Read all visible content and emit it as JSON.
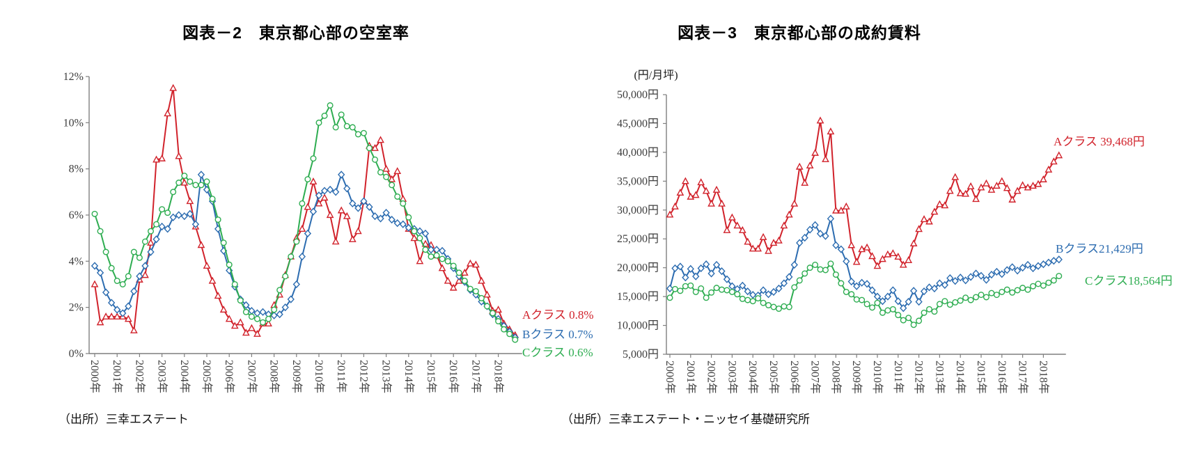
{
  "page": {
    "background": "#ffffff"
  },
  "chart_data": [
    {
      "id": "vacancy",
      "type": "line",
      "title": "図表－2　東京都心部の空室率",
      "source": "（出所）三幸エステート",
      "frequency": "quarterly",
      "x_start": "2000Q1",
      "x_end": "2018Q4",
      "ylim": [
        0,
        12
      ],
      "grid": false,
      "legend_position": "right-of-line-end",
      "y_ticks": [
        "0%",
        "2%",
        "4%",
        "6%",
        "8%",
        "10%",
        "12%"
      ],
      "x_labels": [
        "2000年",
        "2001年",
        "2002年",
        "2003年",
        "2004年",
        "2005年",
        "2006年",
        "2007年",
        "2008年",
        "2009年",
        "2010年",
        "2011年",
        "2012年",
        "2013年",
        "2014年",
        "2015年",
        "2016年",
        "2017年",
        "2018年"
      ],
      "series": [
        {
          "name": "a-class",
          "label": "Aクラス 0.8%",
          "color": "#d1222b",
          "marker": "triangle",
          "end_value": 0.8,
          "values": [
            3.0,
            1.35,
            1.6,
            1.6,
            1.6,
            1.6,
            1.5,
            1.0,
            3.2,
            3.4,
            4.8,
            8.4,
            8.45,
            10.4,
            11.5,
            8.55,
            7.4,
            6.6,
            5.5,
            4.7,
            3.8,
            3.15,
            2.5,
            1.9,
            1.5,
            1.2,
            1.35,
            0.9,
            1.1,
            0.85,
            1.3,
            1.3,
            2.1,
            2.55,
            3.4,
            4.2,
            5.0,
            5.4,
            6.35,
            7.45,
            6.5,
            6.75,
            6.0,
            4.85,
            6.2,
            5.95,
            4.95,
            5.3,
            6.6,
            9.0,
            8.9,
            9.25,
            8.0,
            7.55,
            7.9,
            6.7,
            5.4,
            5.0,
            4.0,
            4.75,
            4.7,
            4.25,
            3.7,
            3.15,
            2.85,
            3.15,
            3.5,
            3.9,
            3.85,
            3.15,
            2.55,
            1.85,
            1.9,
            1.3,
            1.05,
            0.8
          ]
        },
        {
          "name": "b-class",
          "label": "Bクラス 0.7%",
          "color": "#2c6cb0",
          "marker": "diamond",
          "end_value": 0.7,
          "values": [
            3.8,
            3.5,
            2.65,
            2.2,
            1.9,
            1.75,
            2.05,
            2.7,
            3.35,
            3.8,
            4.4,
            4.95,
            5.5,
            5.4,
            5.9,
            6.0,
            5.95,
            6.05,
            5.6,
            7.75,
            7.1,
            6.6,
            5.4,
            4.45,
            3.6,
            2.9,
            2.35,
            2.1,
            1.85,
            1.75,
            1.8,
            1.7,
            1.65,
            1.7,
            2.0,
            2.35,
            3.0,
            4.2,
            5.2,
            6.15,
            6.85,
            7.05,
            7.1,
            7.0,
            7.75,
            7.15,
            6.5,
            6.3,
            6.6,
            6.35,
            5.95,
            5.85,
            6.1,
            5.8,
            5.65,
            5.6,
            5.45,
            5.4,
            5.3,
            5.2,
            4.5,
            4.5,
            4.45,
            4.1,
            3.7,
            3.35,
            3.1,
            2.75,
            2.55,
            2.25,
            2.05,
            1.7,
            1.5,
            1.2,
            0.95,
            0.7
          ]
        },
        {
          "name": "c-class",
          "label": "Cクラス 0.6%",
          "color": "#2ead51",
          "marker": "circle",
          "end_value": 0.6,
          "values": [
            6.05,
            5.3,
            4.4,
            3.7,
            3.15,
            3.0,
            3.35,
            4.4,
            4.15,
            4.85,
            5.3,
            5.6,
            6.25,
            6.1,
            7.0,
            7.4,
            7.7,
            7.45,
            7.3,
            7.3,
            7.45,
            6.7,
            5.8,
            4.8,
            3.85,
            3.0,
            2.3,
            1.8,
            1.6,
            1.5,
            1.35,
            1.5,
            1.9,
            2.75,
            3.35,
            4.2,
            4.85,
            6.5,
            7.55,
            8.45,
            10.0,
            10.3,
            10.75,
            9.8,
            10.35,
            9.85,
            9.8,
            9.5,
            9.55,
            8.9,
            8.4,
            7.85,
            7.65,
            7.3,
            6.8,
            6.5,
            5.9,
            5.3,
            5.0,
            4.5,
            4.2,
            4.25,
            4.1,
            4.0,
            3.8,
            3.5,
            3.15,
            2.8,
            2.7,
            2.4,
            2.05,
            1.75,
            1.4,
            1.05,
            0.85,
            0.6
          ]
        }
      ]
    },
    {
      "id": "rent",
      "type": "line",
      "title": "図表－3　東京都心部の成約賃料",
      "unit_label": "(円/月坪)",
      "source": "（出所）三幸エステート・ニッセイ基礎研究所",
      "frequency": "quarterly",
      "x_start": "2000Q1",
      "x_end": "2018Q4",
      "ylim": [
        5000,
        50000
      ],
      "grid": false,
      "legend_position": "right-of-line-end",
      "y_ticks": [
        "5,000円",
        "10,000円",
        "15,000円",
        "20,000円",
        "25,000円",
        "30,000円",
        "35,000円",
        "40,000円",
        "45,000円",
        "50,000円"
      ],
      "x_labels": [
        "2000年",
        "2001年",
        "2002年",
        "2003年",
        "2004年",
        "2005年",
        "2006年",
        "2007年",
        "2008年",
        "2009年",
        "2010年",
        "2011年",
        "2012年",
        "2013年",
        "2014年",
        "2015年",
        "2016年",
        "2017年",
        "2018年"
      ],
      "series": [
        {
          "name": "a-class",
          "label": "Aクラス 39,468円",
          "color": "#d1222b",
          "marker": "triangle",
          "end_value": 39468,
          "values": [
            29200,
            30600,
            33000,
            35000,
            32300,
            32600,
            34800,
            33300,
            31100,
            33500,
            31100,
            26500,
            28700,
            27300,
            26500,
            24500,
            23300,
            23300,
            25300,
            22900,
            24300,
            24700,
            27300,
            29200,
            31100,
            37500,
            34700,
            37700,
            39900,
            45500,
            38800,
            43600,
            29900,
            29900,
            30600,
            23900,
            21000,
            23200,
            23500,
            22000,
            20300,
            21500,
            22300,
            22500,
            21900,
            20500,
            21300,
            24200,
            26700,
            28400,
            28000,
            29700,
            31000,
            30800,
            33300,
            35700,
            32900,
            32800,
            34100,
            31900,
            33900,
            34600,
            33500,
            34200,
            35000,
            33800,
            31800,
            33300,
            34300,
            33900,
            34200,
            34500,
            35300,
            37000,
            38400,
            39468
          ]
        },
        {
          "name": "b-class",
          "label": "Bクラス21,429円",
          "color": "#2c6cb0",
          "marker": "diamond",
          "end_value": 21429,
          "values": [
            16400,
            19900,
            20200,
            18300,
            19800,
            18500,
            19900,
            20600,
            19000,
            20500,
            19400,
            18000,
            16800,
            16300,
            16900,
            15900,
            15300,
            15200,
            16100,
            15400,
            15800,
            16400,
            17300,
            18400,
            20500,
            24300,
            25200,
            26600,
            27400,
            25900,
            25500,
            28500,
            23900,
            23200,
            21100,
            17600,
            16800,
            17400,
            17200,
            16100,
            15000,
            14200,
            15000,
            16100,
            14200,
            13000,
            14100,
            16000,
            14100,
            15900,
            16600,
            16400,
            17300,
            17000,
            18200,
            17700,
            18300,
            17800,
            18400,
            19000,
            18600,
            17900,
            18800,
            19300,
            18900,
            19600,
            20100,
            19500,
            20000,
            20500,
            19900,
            20300,
            20600,
            20900,
            21200,
            21429
          ]
        },
        {
          "name": "c-class",
          "label": "Cクラス18,564円",
          "color": "#2ead51",
          "marker": "circle",
          "end_value": 18564,
          "values": [
            14800,
            16300,
            16000,
            16800,
            16900,
            15800,
            16400,
            14800,
            15700,
            16500,
            16200,
            16100,
            15800,
            15400,
            14600,
            14400,
            14200,
            14700,
            13900,
            13500,
            13200,
            12900,
            13300,
            13200,
            16600,
            17800,
            19000,
            20000,
            20500,
            19700,
            19600,
            20700,
            18800,
            17300,
            15800,
            15400,
            14500,
            14400,
            13700,
            13100,
            13900,
            12200,
            12600,
            12800,
            11800,
            10900,
            11300,
            10100,
            10800,
            12200,
            12800,
            12400,
            13700,
            14200,
            13600,
            14000,
            14300,
            14800,
            14400,
            14900,
            15300,
            14900,
            15600,
            15300,
            15800,
            16200,
            15700,
            16100,
            16500,
            16200,
            16800,
            17200,
            16900,
            17400,
            17800,
            18564
          ]
        }
      ]
    }
  ]
}
